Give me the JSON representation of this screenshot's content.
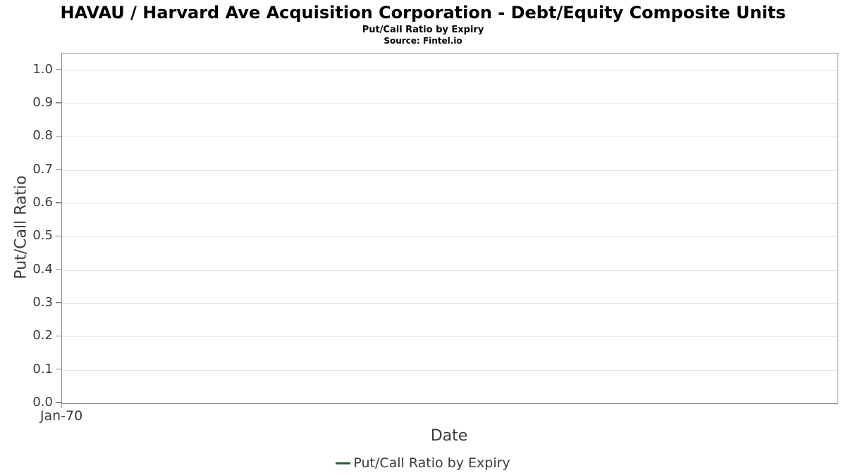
{
  "header": {
    "title": "HAVAU / Harvard Ave Acquisition Corporation - Debt/Equity Composite Units",
    "subtitle": "Put/Call Ratio by Expiry",
    "source": "Source: Fintel.io"
  },
  "chart_data": {
    "type": "line",
    "title": "HAVAU / Harvard Ave Acquisition Corporation - Debt/Equity Composite Units",
    "subtitle": "Put/Call Ratio by Expiry",
    "source": "Source: Fintel.io",
    "xlabel": "Date",
    "ylabel": "Put/Call Ratio",
    "x_tick_labels": [
      "Jan-70"
    ],
    "y_tick_labels": [
      "0.0",
      "0.1",
      "0.2",
      "0.3",
      "0.4",
      "0.5",
      "0.6",
      "0.7",
      "0.8",
      "0.9",
      "1.0"
    ],
    "y_tick_values": [
      0.0,
      0.1,
      0.2,
      0.3,
      0.4,
      0.5,
      0.6,
      0.7,
      0.8,
      0.9,
      1.0
    ],
    "ylim": [
      0.0,
      1.05
    ],
    "grid": true,
    "legend_position": "bottom-center",
    "series": [
      {
        "name": "Put/Call Ratio by Expiry",
        "color": "#2d5f3c",
        "x": [],
        "values": []
      }
    ]
  },
  "colors": {
    "title_text": "#000000",
    "axis_text": "#3b3b3b",
    "grid_line": "#e7e7e7",
    "axis_border": "#8a8a8a",
    "series_green": "#2d5f3c"
  }
}
